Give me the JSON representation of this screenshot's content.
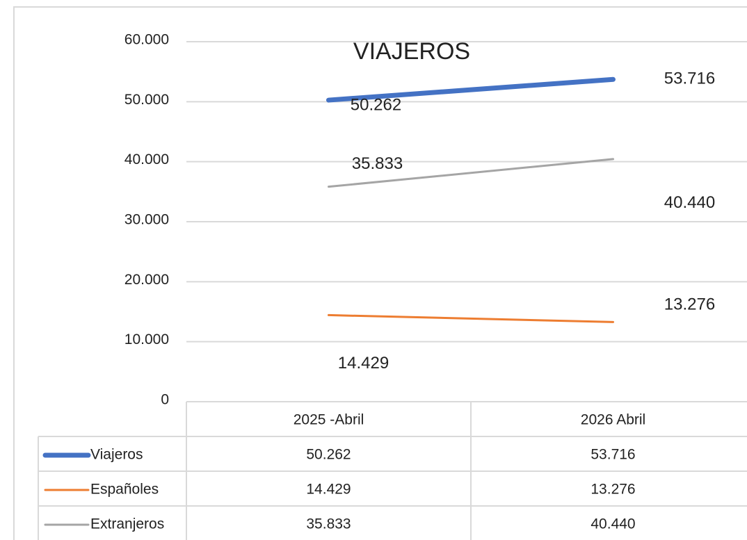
{
  "chart_data": {
    "type": "line",
    "title": "VIAJEROS",
    "categories": [
      "2025 -Abril",
      "2026 Abril"
    ],
    "series": [
      {
        "name": "Viajeros",
        "color": "#4472c4",
        "values": [
          50262,
          53716
        ],
        "value_labels": [
          "50.262",
          "53.716"
        ]
      },
      {
        "name": "Españoles",
        "color": "#ed7d31",
        "values": [
          14429,
          13276
        ],
        "value_labels": [
          "14.429",
          "13.276"
        ]
      },
      {
        "name": "Extranjeros",
        "color": "#a5a5a5",
        "values": [
          35833,
          40440
        ],
        "value_labels": [
          "35.833",
          "40.440"
        ]
      }
    ],
    "ylim": [
      0,
      60000
    ],
    "yticks": [
      0,
      {
        "value": 10000,
        "label": "10.000"
      },
      {
        "value": 20000,
        "label": "20.000"
      },
      {
        "value": 30000,
        "label": "30.000"
      },
      {
        "value": 40000,
        "label": "40.000"
      },
      {
        "value": 50000,
        "label": "50.000"
      },
      {
        "value": 60000,
        "label": "60.000"
      }
    ],
    "grid": true,
    "data_table": true
  }
}
